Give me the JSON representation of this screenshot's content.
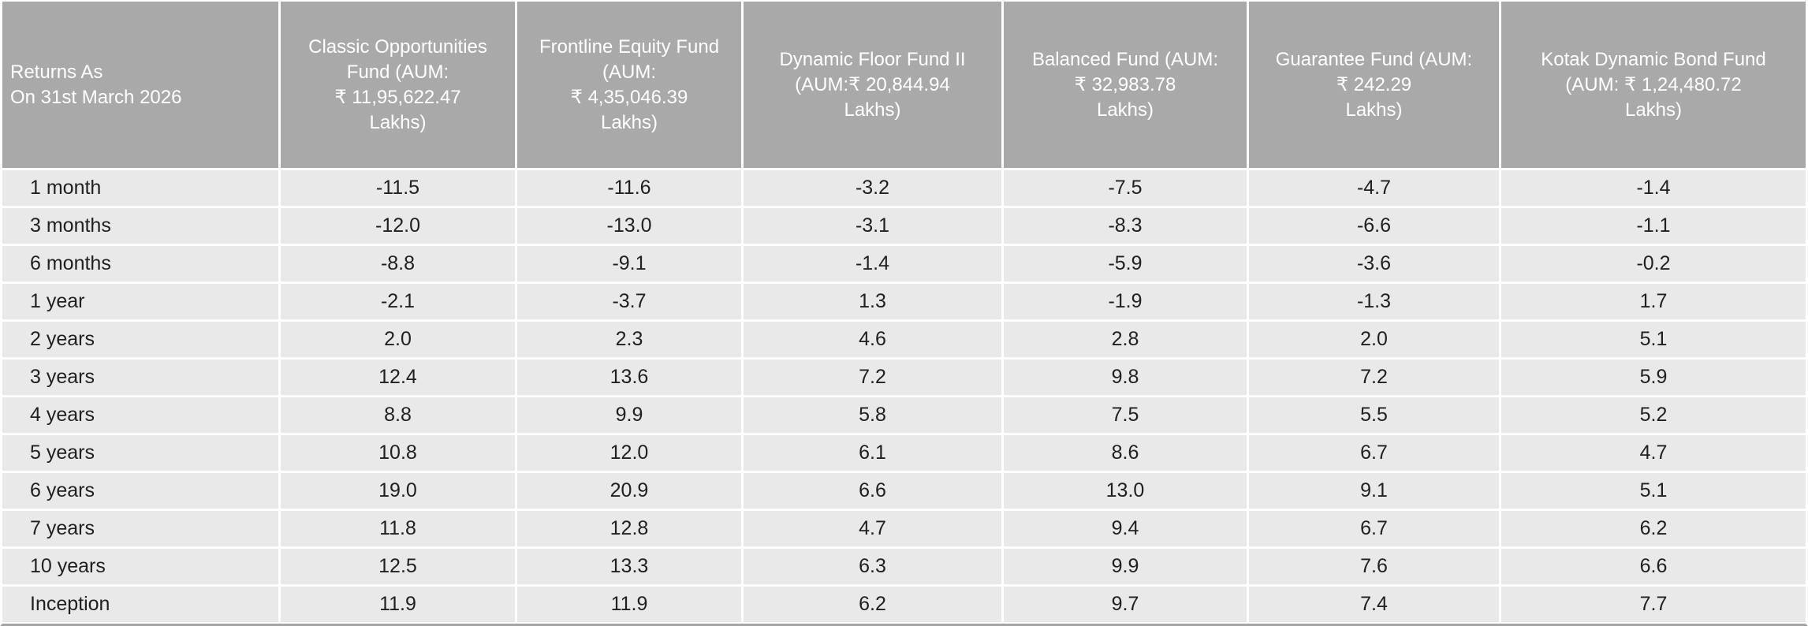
{
  "colors": {
    "header_bg": "#a9a9a9",
    "header_text": "#ffffff",
    "row_bg": "#e9e9e9",
    "body_text": "#202020",
    "separator": "#ffffff",
    "bottom_border": "#a5a5a5"
  },
  "chart_data": {
    "type": "table",
    "title": "Returns As\nOn 31st March 2026",
    "categories": [
      "1 month",
      "3 months",
      "6 months",
      "1 year",
      "2 years",
      "3 years",
      "4 years",
      "5 years",
      "6 years",
      "7 years",
      "10 years",
      "Inception"
    ],
    "series": [
      {
        "name": "Classic Opportunities\nFund (AUM:\n₹ 11,95,622.47\nLakhs)",
        "fund": "Classic Opportunities Fund",
        "aum": "₹ 11,95,622.47 Lakhs",
        "values": [
          -11.5,
          -12.0,
          -8.8,
          -2.1,
          2.0,
          12.4,
          8.8,
          10.8,
          19.0,
          11.8,
          12.5,
          11.9
        ]
      },
      {
        "name": "Frontline Equity Fund\n(AUM:\n₹ 4,35,046.39\nLakhs)",
        "fund": "Frontline Equity Fund",
        "aum": "₹ 4,35,046.39 Lakhs",
        "values": [
          -11.6,
          -13.0,
          -9.1,
          -3.7,
          2.3,
          13.6,
          9.9,
          12.0,
          20.9,
          12.8,
          13.3,
          11.9
        ]
      },
      {
        "name": "Dynamic Floor Fund II\n(AUM:₹ 20,844.94\nLakhs)",
        "fund": "Dynamic Floor Fund II",
        "aum": "₹ 20,844.94 Lakhs",
        "values": [
          -3.2,
          -3.1,
          -1.4,
          1.3,
          4.6,
          7.2,
          5.8,
          6.1,
          6.6,
          4.7,
          6.3,
          6.2
        ]
      },
      {
        "name": "Balanced Fund (AUM:\n₹ 32,983.78\nLakhs)",
        "fund": "Balanced Fund",
        "aum": "₹ 32,983.78 Lakhs",
        "values": [
          -7.5,
          -8.3,
          -5.9,
          -1.9,
          2.8,
          9.8,
          7.5,
          8.6,
          13.0,
          9.4,
          9.9,
          9.7
        ]
      },
      {
        "name": "Guarantee Fund (AUM:\n₹ 242.29\nLakhs)",
        "fund": "Guarantee Fund",
        "aum": "₹ 242.29 Lakhs",
        "values": [
          -4.7,
          -6.6,
          -3.6,
          -1.3,
          2.0,
          7.2,
          5.5,
          6.7,
          9.1,
          6.7,
          7.6,
          7.4
        ]
      },
      {
        "name": "Kotak Dynamic Bond Fund\n(AUM: ₹ 1,24,480.72\nLakhs)",
        "fund": "Kotak Dynamic Bond Fund",
        "aum": "₹ 1,24,480.72 Lakhs",
        "values": [
          -1.4,
          -1.1,
          -0.2,
          1.7,
          5.1,
          5.9,
          5.2,
          4.7,
          5.1,
          6.2,
          6.6,
          7.7
        ]
      }
    ],
    "value_format": "one_decimal",
    "layout": "rows are return periods, columns are funds; no gridlines besides white separators"
  }
}
